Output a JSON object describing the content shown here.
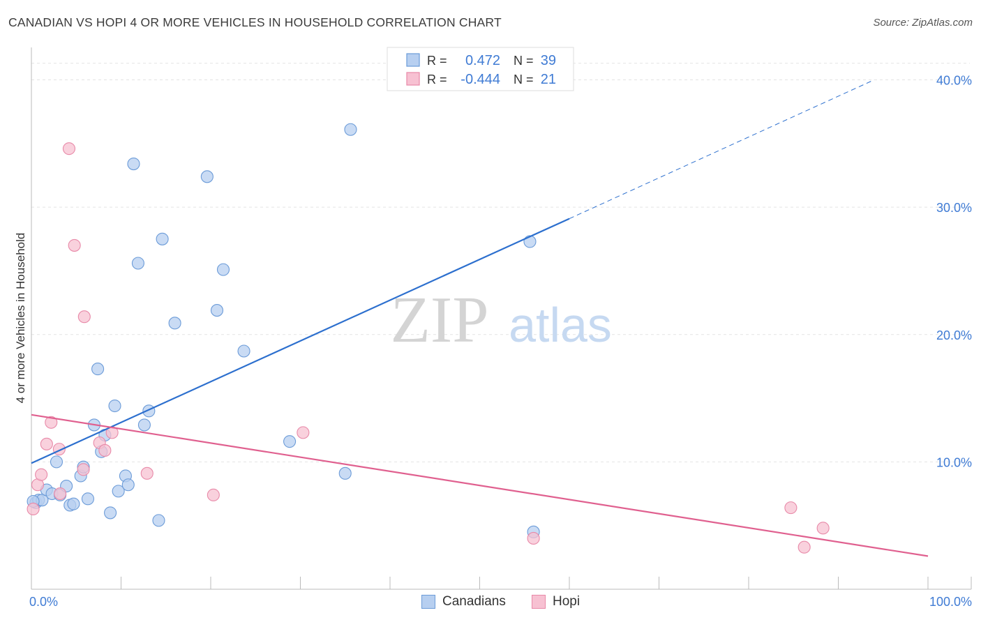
{
  "title": "CANADIAN VS HOPI 4 OR MORE VEHICLES IN HOUSEHOLD CORRELATION CHART",
  "source": "Source: ZipAtlas.com",
  "watermark": {
    "zip": "ZIP",
    "atlas": "atlas"
  },
  "colors": {
    "canadians_fill": "#b7cff0",
    "canadians_stroke": "#6b9bd8",
    "canadians_line": "#2c6fce",
    "hopi_fill": "#f7c1d2",
    "hopi_stroke": "#e889a8",
    "hopi_line": "#e0608f",
    "tick_label": "#3f7bd4",
    "grid": "#e3e3e3"
  },
  "legend_top": {
    "rows": [
      {
        "r_label": "R =",
        "r_value": "0.472",
        "n_label": "N =",
        "n_value": "39"
      },
      {
        "r_label": "R =",
        "r_value": "-0.444",
        "n_label": "N =",
        "n_value": "21"
      }
    ]
  },
  "legend_bottom": [
    "Canadians",
    "Hopi"
  ],
  "chart_data": {
    "type": "scatter",
    "title": "CANADIAN VS HOPI 4 OR MORE VEHICLES IN HOUSEHOLD CORRELATION CHART",
    "xlabel": "",
    "ylabel": "4 or more Vehicles in Household",
    "xlim": [
      0,
      100
    ],
    "ylim": [
      0,
      42
    ],
    "x_tick_labels": [
      "0.0%",
      "100.0%"
    ],
    "y_ticks": [
      10,
      20,
      30,
      40
    ],
    "y_tick_labels": [
      "10.0%",
      "20.0%",
      "30.0%",
      "40.0%"
    ],
    "series": [
      {
        "name": "Canadians",
        "r": 0.472,
        "n": 39,
        "trend": {
          "x0": 0,
          "y0": 9.9,
          "x1": 60,
          "y1": 29.1,
          "dashed_to_x": 94,
          "dashed_to_y": 40.0
        },
        "points": [
          [
            0.5,
            6.8
          ],
          [
            0.8,
            7.0
          ],
          [
            1.2,
            7.0
          ],
          [
            1.7,
            7.8
          ],
          [
            2.3,
            7.5
          ],
          [
            2.8,
            10.0
          ],
          [
            3.2,
            7.4
          ],
          [
            3.9,
            8.1
          ],
          [
            4.3,
            6.6
          ],
          [
            4.7,
            6.7
          ],
          [
            5.5,
            8.9
          ],
          [
            5.8,
            9.6
          ],
          [
            6.3,
            7.1
          ],
          [
            7.0,
            12.9
          ],
          [
            7.4,
            17.3
          ],
          [
            7.8,
            10.8
          ],
          [
            8.2,
            12.1
          ],
          [
            8.8,
            6.0
          ],
          [
            9.3,
            14.4
          ],
          [
            9.7,
            7.7
          ],
          [
            10.5,
            8.9
          ],
          [
            10.8,
            8.2
          ],
          [
            11.4,
            33.4
          ],
          [
            11.9,
            25.6
          ],
          [
            12.6,
            12.9
          ],
          [
            13.1,
            14.0
          ],
          [
            14.2,
            5.4
          ],
          [
            14.6,
            27.5
          ],
          [
            16.0,
            20.9
          ],
          [
            19.6,
            32.4
          ],
          [
            20.7,
            21.9
          ],
          [
            21.4,
            25.1
          ],
          [
            23.7,
            18.7
          ],
          [
            28.8,
            11.6
          ],
          [
            35.0,
            9.1
          ],
          [
            35.6,
            36.1
          ],
          [
            55.6,
            27.3
          ],
          [
            56.0,
            4.5
          ],
          [
            0.2,
            6.9
          ]
        ]
      },
      {
        "name": "Hopi",
        "r": -0.444,
        "n": 21,
        "trend": {
          "x0": 0,
          "y0": 13.7,
          "x1": 100,
          "y1": 2.6
        },
        "points": [
          [
            0.2,
            6.3
          ],
          [
            0.7,
            8.2
          ],
          [
            1.1,
            9.0
          ],
          [
            1.7,
            11.4
          ],
          [
            2.2,
            13.1
          ],
          [
            3.1,
            11.0
          ],
          [
            3.2,
            7.5
          ],
          [
            4.2,
            34.6
          ],
          [
            4.8,
            27.0
          ],
          [
            5.8,
            9.4
          ],
          [
            5.9,
            21.4
          ],
          [
            7.6,
            11.5
          ],
          [
            8.2,
            10.9
          ],
          [
            9.0,
            12.3
          ],
          [
            12.9,
            9.1
          ],
          [
            20.3,
            7.4
          ],
          [
            30.3,
            12.3
          ],
          [
            56.0,
            4.0
          ],
          [
            84.7,
            6.4
          ],
          [
            86.2,
            3.3
          ],
          [
            88.3,
            4.8
          ]
        ]
      }
    ]
  }
}
